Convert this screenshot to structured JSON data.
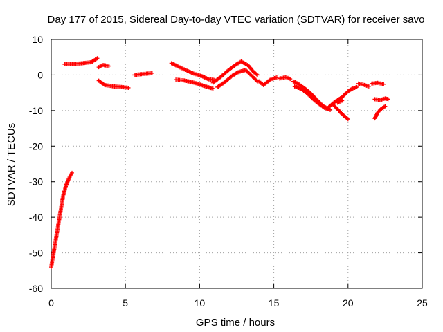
{
  "chart_data": {
    "type": "scatter",
    "title": "Day 177 of 2015, Sidereal Day-to-day VTEC variation (SDTVAR) for receiver savo",
    "xlabel": "GPS time / hours",
    "ylabel": "SDTVAR / TECUs",
    "xlim": [
      0,
      25
    ],
    "ylim": [
      -60,
      10
    ],
    "xticks": [
      0,
      5,
      10,
      15,
      20,
      25
    ],
    "yticks": [
      -60,
      -50,
      -40,
      -30,
      -20,
      -10,
      0,
      10
    ],
    "grid": true,
    "marker": "+",
    "color": "#ff0000",
    "series": [
      {
        "name": "SDTVAR",
        "segments": [
          [
            [
              0.0,
              -54
            ],
            [
              0.2,
              -49
            ],
            [
              0.4,
              -44
            ],
            [
              0.6,
              -39
            ],
            [
              0.8,
              -34
            ],
            [
              1.0,
              -31
            ],
            [
              1.2,
              -29
            ],
            [
              1.4,
              -27.5
            ]
          ],
          [
            [
              0.9,
              3
            ],
            [
              1.5,
              3.1
            ],
            [
              2.1,
              3.3
            ],
            [
              2.7,
              3.6
            ],
            [
              3.1,
              4.7
            ]
          ],
          [
            [
              3.2,
              2.2
            ],
            [
              3.5,
              2.8
            ],
            [
              3.9,
              2.5
            ]
          ],
          [
            [
              3.2,
              -1.6
            ],
            [
              3.6,
              -2.8
            ],
            [
              4.2,
              -3.2
            ],
            [
              4.8,
              -3.4
            ],
            [
              5.2,
              -3.6
            ]
          ],
          [
            [
              5.6,
              0
            ],
            [
              6.0,
              0.2
            ],
            [
              6.5,
              0.4
            ],
            [
              6.8,
              0.5
            ]
          ],
          [
            [
              8.1,
              3.3
            ],
            [
              8.6,
              2.3
            ],
            [
              9.1,
              1.3
            ],
            [
              9.6,
              0.4
            ],
            [
              10.2,
              -0.4
            ],
            [
              10.6,
              -1.2
            ],
            [
              11.0,
              -1.4
            ]
          ],
          [
            [
              8.4,
              -1.3
            ],
            [
              8.9,
              -1.5
            ],
            [
              9.4,
              -1.9
            ],
            [
              9.9,
              -2.5
            ],
            [
              10.4,
              -3.2
            ],
            [
              10.9,
              -3.8
            ]
          ],
          [
            [
              10.9,
              -2.2
            ],
            [
              11.4,
              -0.6
            ],
            [
              11.9,
              1.2
            ],
            [
              12.4,
              2.8
            ],
            [
              12.8,
              3.8
            ],
            [
              13.3,
              2.6
            ],
            [
              13.6,
              1.0
            ],
            [
              13.9,
              0.0
            ]
          ],
          [
            [
              11.2,
              -3.4
            ],
            [
              11.7,
              -2.0
            ],
            [
              12.2,
              -0.2
            ],
            [
              12.6,
              0.8
            ],
            [
              13.1,
              1.4
            ],
            [
              13.5,
              -0.2
            ],
            [
              13.9,
              -1.8
            ]
          ],
          [
            [
              14.0,
              -1.8
            ],
            [
              14.3,
              -2.8
            ],
            [
              14.8,
              -1.2
            ],
            [
              15.2,
              -0.7
            ]
          ],
          [
            [
              15.4,
              -1.0
            ],
            [
              15.8,
              -0.6
            ],
            [
              16.1,
              -1.1
            ]
          ],
          [
            [
              16.3,
              -1.8
            ],
            [
              16.7,
              -2.6
            ],
            [
              17.1,
              -3.8
            ],
            [
              17.5,
              -5.2
            ],
            [
              17.9,
              -7.0
            ],
            [
              18.3,
              -8.6
            ],
            [
              18.7,
              -9.6
            ]
          ],
          [
            [
              16.4,
              -3.2
            ],
            [
              16.8,
              -3.8
            ],
            [
              17.2,
              -5.0
            ],
            [
              17.6,
              -6.6
            ],
            [
              18.0,
              -8.0
            ],
            [
              18.4,
              -9.2
            ],
            [
              18.8,
              -9.8
            ]
          ],
          [
            [
              18.7,
              -9.0
            ],
            [
              19.1,
              -7.6
            ],
            [
              19.6,
              -6.2
            ],
            [
              19.9,
              -5.0
            ]
          ],
          [
            [
              19.0,
              -8.4
            ],
            [
              19.3,
              -9.6
            ],
            [
              19.6,
              -11.0
            ],
            [
              20.0,
              -12.4
            ]
          ],
          [
            [
              19.3,
              -7.8
            ],
            [
              19.6,
              -7.2
            ]
          ],
          [
            [
              20.0,
              -4.6
            ],
            [
              20.3,
              -3.8
            ],
            [
              20.6,
              -3.4
            ]
          ],
          [
            [
              20.7,
              -2.4
            ],
            [
              21.1,
              -2.8
            ],
            [
              21.4,
              -3.2
            ]
          ],
          [
            [
              21.6,
              -2.4
            ],
            [
              22.0,
              -2.2
            ],
            [
              22.4,
              -2.6
            ]
          ],
          [
            [
              21.8,
              -12.2
            ],
            [
              22.0,
              -10.6
            ],
            [
              22.2,
              -9.6
            ],
            [
              22.5,
              -8.8
            ]
          ],
          [
            [
              21.8,
              -6.8
            ],
            [
              22.2,
              -7.0
            ],
            [
              22.5,
              -6.6
            ],
            [
              22.7,
              -6.8
            ]
          ]
        ]
      }
    ]
  }
}
